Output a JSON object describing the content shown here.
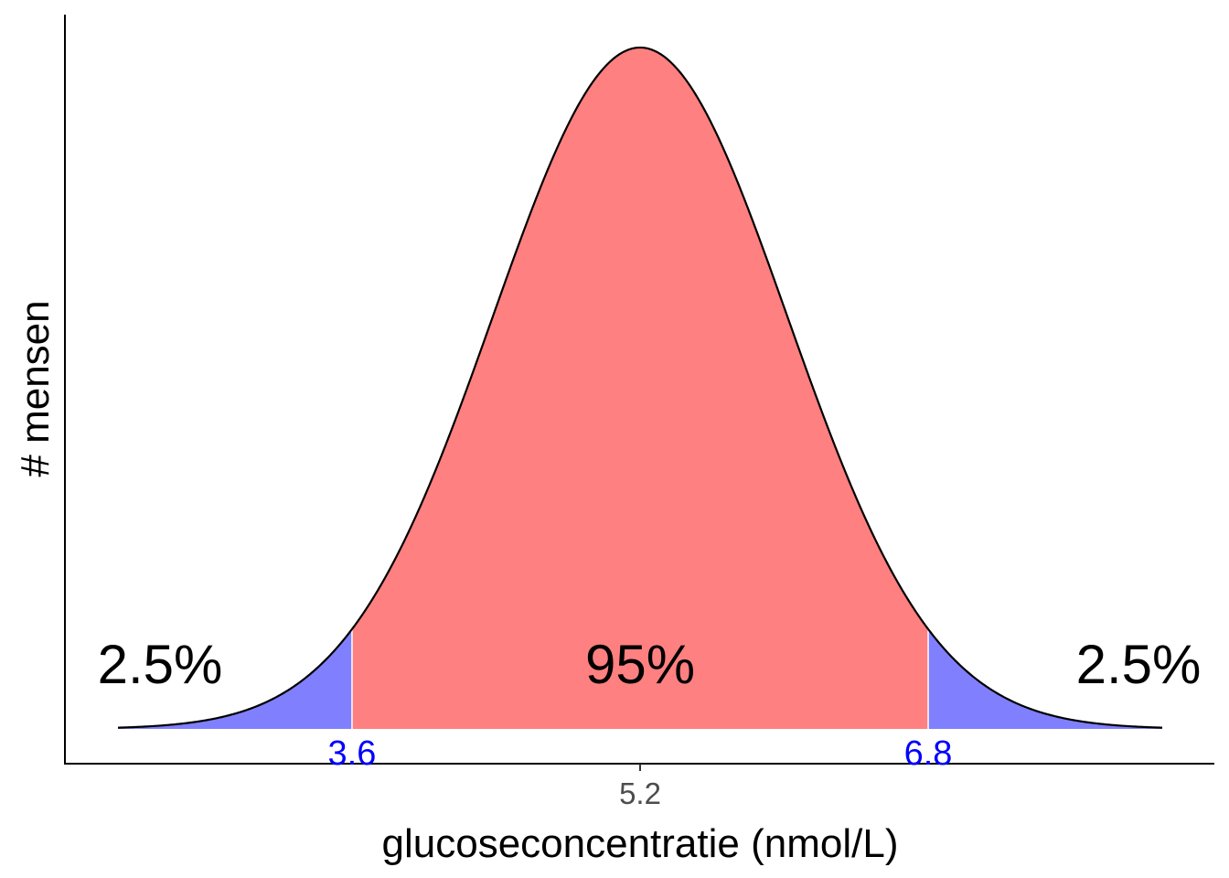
{
  "chart_data": {
    "type": "area",
    "title": "",
    "xlabel": "glucoseconcentratie (nmol/L)",
    "ylabel": "# mensen",
    "distribution": {
      "kind": "normal",
      "mean": 5.2,
      "sd": 0.8163
    },
    "x_range": [
      2.3,
      8.1
    ],
    "x_ticks": [
      5.2
    ],
    "x_tick_labels": [
      "5.2"
    ],
    "y_ticks": [],
    "grid": false,
    "legend": "none",
    "cutoffs": [
      {
        "value": 3.6,
        "label": "3.6"
      },
      {
        "value": 6.8,
        "label": "6.8"
      }
    ],
    "regions": [
      {
        "name": "lower-tail",
        "from": 2.3,
        "to": 3.6,
        "percent_label": "2.5%",
        "color": "#8080ff"
      },
      {
        "name": "middle",
        "from": 3.6,
        "to": 6.8,
        "percent_label": "95%",
        "color": "#ff8080"
      },
      {
        "name": "upper-tail",
        "from": 6.8,
        "to": 8.1,
        "percent_label": "2.5%",
        "color": "#8080ff"
      }
    ],
    "colors": {
      "curve": "#000000",
      "cutoff_label": "#0000ff",
      "tick_label": "#4d4d4d",
      "axis": "#000000"
    }
  }
}
